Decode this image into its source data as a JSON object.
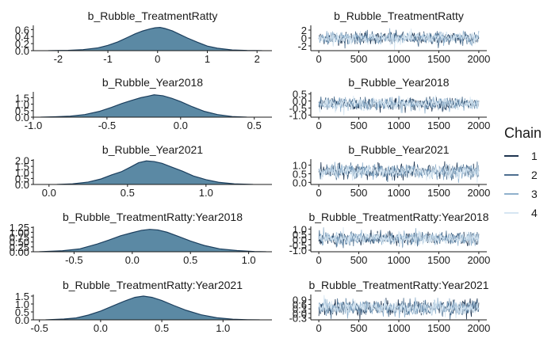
{
  "legend": {
    "title": "Chain",
    "items": [
      {
        "label": "1",
        "color": "#1f3550"
      },
      {
        "label": "2",
        "color": "#4d6f8f"
      },
      {
        "label": "3",
        "color": "#8fb0cc"
      },
      {
        "label": "4",
        "color": "#d6e6f2"
      }
    ]
  },
  "style": {
    "density_fill": "#5b89a4",
    "density_line": "#1c3f5e",
    "trace_colors": [
      "#1f3550",
      "#4d6f8f",
      "#8fb0cc",
      "#d6e6f2"
    ]
  },
  "chart_data": [
    {
      "type": "area",
      "title": "b_Rubble_TreatmentRatty",
      "xlim": [
        -2.5,
        2.3
      ],
      "ylim": [
        0,
        0.72
      ],
      "xticks": [
        -2,
        -1,
        0,
        1,
        2
      ],
      "yticks": [
        0.0,
        0.2,
        0.4,
        0.6
      ],
      "ytick_labels": [
        "0.0",
        "0.2",
        "0.4",
        "0.6"
      ],
      "x": [
        -2.2,
        -1.8,
        -1.5,
        -1.2,
        -1.0,
        -0.8,
        -0.6,
        -0.45,
        -0.3,
        -0.15,
        -0.05,
        0.05,
        0.15,
        0.3,
        0.45,
        0.6,
        0.8,
        1.0,
        1.2,
        1.5,
        1.8,
        2.1
      ],
      "y": [
        0.0,
        0.01,
        0.03,
        0.08,
        0.15,
        0.25,
        0.38,
        0.48,
        0.56,
        0.62,
        0.65,
        0.66,
        0.63,
        0.56,
        0.46,
        0.36,
        0.24,
        0.13,
        0.07,
        0.02,
        0.005,
        0.0
      ]
    },
    {
      "type": "line",
      "title": "b_Rubble_TreatmentRatty",
      "xlim": [
        -100,
        2100
      ],
      "ylim": [
        -3.2,
        3.2
      ],
      "xticks": [
        0,
        500,
        1000,
        1500,
        2000
      ],
      "yticks": [
        -2,
        0,
        2
      ],
      "ytick_labels": [
        "-2",
        "0",
        "2"
      ],
      "iterations": 2000,
      "center": 0.0,
      "spread": 0.75
    },
    {
      "type": "area",
      "title": "b_Rubble_Year2018",
      "xlim": [
        -1.0,
        0.62
      ],
      "ylim": [
        0,
        1.95
      ],
      "xticks": [
        -1.0,
        -0.5,
        0.0,
        0.5
      ],
      "yticks": [
        0.0,
        0.5,
        1.0,
        1.5
      ],
      "ytick_labels": [
        "0.0",
        "0.5",
        "1.0",
        "1.5"
      ],
      "x": [
        -0.95,
        -0.85,
        -0.75,
        -0.65,
        -0.55,
        -0.47,
        -0.4,
        -0.33,
        -0.27,
        -0.22,
        -0.18,
        -0.12,
        -0.06,
        0.0,
        0.08,
        0.16,
        0.25,
        0.35,
        0.45
      ],
      "y": [
        0.0,
        0.03,
        0.08,
        0.2,
        0.45,
        0.75,
        1.05,
        1.3,
        1.5,
        1.62,
        1.72,
        1.65,
        1.45,
        1.2,
        0.8,
        0.45,
        0.2,
        0.05,
        0.0
      ]
    },
    {
      "type": "line",
      "title": "b_Rubble_Year2018",
      "xlim": [
        -100,
        2100
      ],
      "ylim": [
        -1.15,
        0.65
      ],
      "xticks": [
        0,
        500,
        1000,
        1500,
        2000
      ],
      "yticks": [
        -1.0,
        -0.5,
        0.0,
        0.5
      ],
      "ytick_labels": [
        "-1.0",
        "-0.5",
        "0.0",
        "0.5"
      ],
      "iterations": 2000,
      "center": -0.2,
      "spread": 0.22
    },
    {
      "type": "area",
      "title": "b_Rubble_Year2021",
      "xlim": [
        -0.1,
        1.42
      ],
      "ylim": [
        0,
        2.1
      ],
      "xticks": [
        0.0,
        0.5,
        1.0
      ],
      "yticks": [
        0.0,
        0.5,
        1.0,
        1.5,
        2.0
      ],
      "ytick_labels": [
        "0.0",
        "0.5",
        "1.0",
        "1.5",
        "2.0"
      ],
      "x": [
        0.05,
        0.15,
        0.25,
        0.33,
        0.4,
        0.46,
        0.52,
        0.57,
        0.62,
        0.67,
        0.72,
        0.78,
        0.85,
        0.92,
        1.0,
        1.08,
        1.18,
        1.3
      ],
      "y": [
        0.0,
        0.05,
        0.2,
        0.45,
        0.8,
        1.05,
        1.45,
        1.8,
        1.95,
        1.9,
        1.75,
        1.45,
        1.1,
        0.7,
        0.4,
        0.18,
        0.05,
        0.0
      ]
    },
    {
      "type": "line",
      "title": "b_Rubble_Year2021",
      "xlim": [
        -100,
        2100
      ],
      "ylim": [
        -0.12,
        1.35
      ],
      "xticks": [
        0,
        500,
        1000,
        1500,
        2000
      ],
      "yticks": [
        0.0,
        0.5,
        1.0
      ],
      "ytick_labels": [
        "0.0",
        "0.5",
        "1.0"
      ],
      "iterations": 2000,
      "center": 0.63,
      "spread": 0.2
    },
    {
      "type": "area",
      "title": "b_Rubble_TreatmentRatty:Year2018",
      "xlim": [
        -0.85,
        1.2
      ],
      "ylim": [
        0,
        1.3
      ],
      "xticks": [
        -0.5,
        0.0,
        0.5,
        1.0
      ],
      "yticks": [
        0.0,
        0.25,
        0.5,
        0.75,
        1.0,
        1.25
      ],
      "ytick_labels": [
        "0.00",
        "0.25",
        "0.50",
        "0.75",
        "1.00",
        "1.25"
      ],
      "x": [
        -0.8,
        -0.6,
        -0.45,
        -0.3,
        -0.2,
        -0.1,
        0.0,
        0.08,
        0.15,
        0.22,
        0.3,
        0.4,
        0.5,
        0.62,
        0.75,
        0.9,
        1.05,
        1.15
      ],
      "y": [
        0.0,
        0.05,
        0.15,
        0.4,
        0.6,
        0.82,
        0.98,
        1.1,
        1.15,
        1.12,
        1.0,
        0.78,
        0.55,
        0.32,
        0.15,
        0.06,
        0.01,
        0.0
      ]
    },
    {
      "type": "line",
      "title": "b_Rubble_TreatmentRatty:Year2018",
      "xlim": [
        -100,
        2100
      ],
      "ylim": [
        -1.15,
        1.25
      ],
      "xticks": [
        0,
        500,
        1000,
        1500,
        2000
      ],
      "yticks": [
        -1.0,
        -0.5,
        0.0,
        0.5,
        1.0
      ],
      "ytick_labels": [
        "-1.0",
        "-0.5",
        "0.0",
        "0.5",
        "1.0"
      ],
      "iterations": 2000,
      "center": 0.1,
      "spread": 0.3
    },
    {
      "type": "area",
      "title": "b_Rubble_TreatmentRatty:Year2021",
      "xlim": [
        -0.55,
        1.4
      ],
      "ylim": [
        0,
        1.6
      ],
      "xticks": [
        -0.5,
        0.0,
        0.5,
        1.0
      ],
      "yticks": [
        0.0,
        0.5,
        1.0,
        1.5
      ],
      "ytick_labels": [
        "0.0",
        "0.5",
        "1.0",
        "1.5"
      ],
      "x": [
        -0.45,
        -0.3,
        -0.2,
        -0.1,
        0.0,
        0.1,
        0.2,
        0.28,
        0.35,
        0.42,
        0.5,
        0.6,
        0.7,
        0.82,
        0.95,
        1.08,
        1.2,
        1.3
      ],
      "y": [
        0.0,
        0.05,
        0.12,
        0.3,
        0.55,
        0.88,
        1.2,
        1.42,
        1.5,
        1.42,
        1.22,
        0.9,
        0.6,
        0.32,
        0.13,
        0.04,
        0.01,
        0.0
      ]
    },
    {
      "type": "line",
      "title": "b_Rubble_TreatmentRatty:Year2021",
      "xlim": [
        -100,
        2100
      ],
      "ylim": [
        -0.42,
        1.25
      ],
      "xticks": [
        0,
        500,
        1000,
        1500,
        2000
      ],
      "yticks": [
        -0.3,
        0.0,
        0.3,
        0.6,
        0.9
      ],
      "ytick_labels": [
        "-0.3",
        "0.0",
        "0.3",
        "0.6",
        "0.9"
      ],
      "iterations": 2000,
      "center": 0.38,
      "spread": 0.25
    }
  ]
}
